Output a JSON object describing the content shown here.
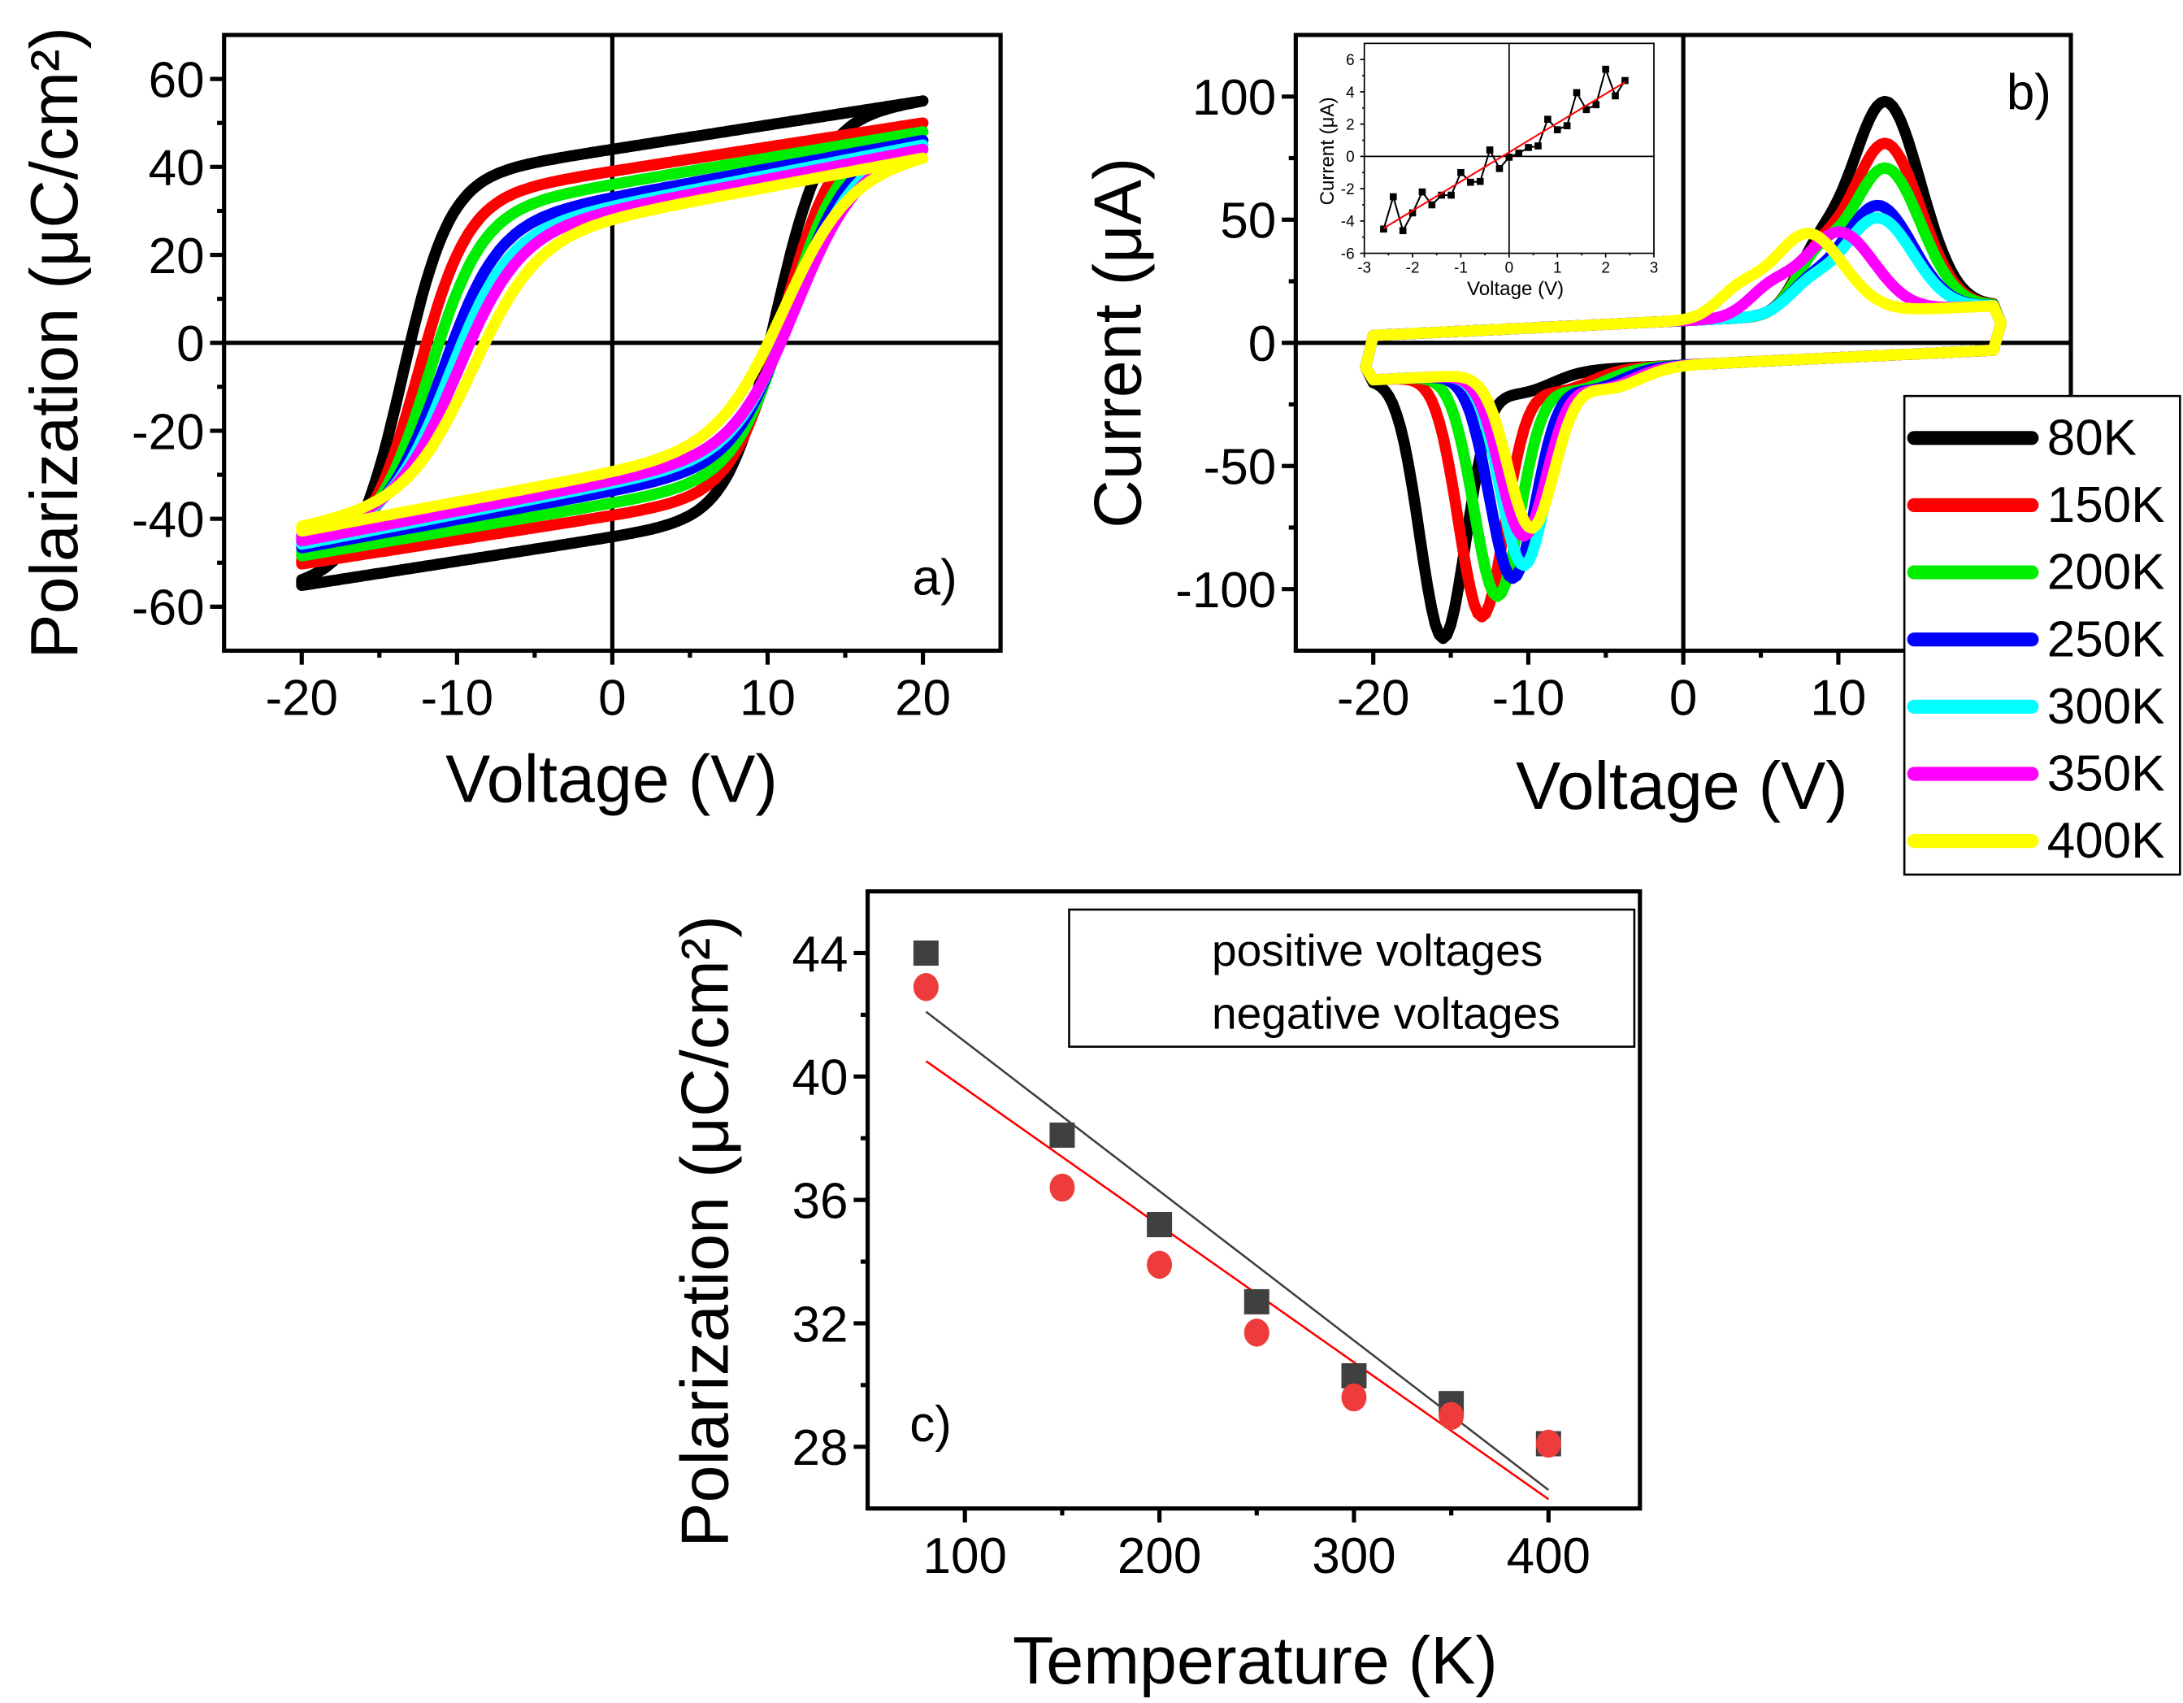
{
  "chart_data": [
    {
      "id": "a",
      "type": "line",
      "panel_label": "a)",
      "xlabel": "Voltage (V)",
      "ylabel": "Polarization (μC/cm²)",
      "xlim": [
        -25,
        25
      ],
      "ylim": [
        -70,
        70
      ],
      "xticks": [
        -20,
        -10,
        0,
        10,
        20
      ],
      "yticks": [
        -60,
        -40,
        -20,
        0,
        20,
        40,
        60
      ],
      "note": "P-E hysteresis loops; per-series key values",
      "series": [
        {
          "name": "80K",
          "color": "#000000",
          "Pmax": 55,
          "Pr": 44,
          "Ec_neg": -13.5,
          "Ec_pos": 10.5
        },
        {
          "name": "150K",
          "color": "#ff0000",
          "Pmax": 50,
          "Pr": 39,
          "Ec_neg": -12.5,
          "Ec_pos": 11.0
        },
        {
          "name": "200K",
          "color": "#00ee00",
          "Pmax": 48,
          "Pr": 36,
          "Ec_neg": -11.8,
          "Ec_pos": 11.3
        },
        {
          "name": "250K",
          "color": "#0000ff",
          "Pmax": 46,
          "Pr": 33,
          "Ec_neg": -11.0,
          "Ec_pos": 11.5
        },
        {
          "name": "300K",
          "color": "#00ffff",
          "Pmax": 45,
          "Pr": 31,
          "Ec_neg": -10.5,
          "Ec_pos": 11.7
        },
        {
          "name": "350K",
          "color": "#ff00ff",
          "Pmax": 44,
          "Pr": 30,
          "Ec_neg": -10.0,
          "Ec_pos": 11.8
        },
        {
          "name": "400K",
          "color": "#ffff00",
          "Pmax": 42,
          "Pr": 28,
          "Ec_neg": -9.0,
          "Ec_pos": 11.0
        }
      ]
    },
    {
      "id": "b",
      "type": "line",
      "panel_label": "b)",
      "xlabel": "Voltage (V)",
      "ylabel": "Current (μA)",
      "xlim": [
        -25,
        25
      ],
      "ylim": [
        -125,
        125
      ],
      "xticks": [
        -20,
        -10,
        0,
        10,
        20
      ],
      "xtick_labels": [
        "-20",
        "-10",
        "0",
        "10",
        ""
      ],
      "yticks": [
        -100,
        -50,
        0,
        50,
        100
      ],
      "legend": {
        "placement": "right",
        "entries": [
          "80K",
          "150K",
          "200K",
          "250K",
          "300K",
          "350K",
          "400K"
        ]
      },
      "note": "I-V switching current loops; per-series peak positions",
      "series": [
        {
          "name": "80K",
          "color": "#000000",
          "pos_peak_V": 13.0,
          "pos_peak_I": 97,
          "neg_peak_V": -15.5,
          "neg_peak_I": -118
        },
        {
          "name": "150K",
          "color": "#ff0000",
          "pos_peak_V": 13.0,
          "pos_peak_I": 80,
          "neg_peak_V": -13.0,
          "neg_peak_I": -110
        },
        {
          "name": "200K",
          "color": "#00ee00",
          "pos_peak_V": 13.0,
          "pos_peak_I": 70,
          "neg_peak_V": -12.0,
          "neg_peak_I": -102
        },
        {
          "name": "250K",
          "color": "#0000ff",
          "pos_peak_V": 12.5,
          "pos_peak_I": 55,
          "neg_peak_V": -11.0,
          "neg_peak_I": -95
        },
        {
          "name": "300K",
          "color": "#00ffff",
          "pos_peak_V": 12.5,
          "pos_peak_I": 50,
          "neg_peak_V": -10.3,
          "neg_peak_I": -90
        },
        {
          "name": "350K",
          "color": "#ff00ff",
          "pos_peak_V": 10.0,
          "pos_peak_I": 45,
          "neg_peak_V": -10.3,
          "neg_peak_I": -78
        },
        {
          "name": "400K",
          "color": "#ffff00",
          "pos_peak_V": 8.0,
          "pos_peak_I": 45,
          "neg_peak_V": -9.8,
          "neg_peak_I": -75
        }
      ],
      "inset": {
        "type": "line",
        "xlabel": "Voltage (V)",
        "ylabel": "Current (μA)",
        "xlim": [
          -3,
          3
        ],
        "ylim": [
          -6,
          7
        ],
        "xticks": [
          -3,
          -2,
          -1,
          0,
          1,
          2,
          3
        ],
        "yticks": [
          -6,
          -4,
          -2,
          0,
          2,
          4,
          6
        ],
        "x": [
          -2.6,
          -2.4,
          -2.2,
          -2.0,
          -1.8,
          -1.6,
          -1.4,
          -1.2,
          -1.0,
          -0.8,
          -0.6,
          -0.4,
          -0.2,
          0.0,
          0.2,
          0.4,
          0.6,
          0.8,
          1.0,
          1.2,
          1.4,
          1.6,
          1.8,
          2.0,
          2.2,
          2.4
        ],
        "y": [
          -4.5,
          -2.5,
          -4.6,
          -3.5,
          -2.2,
          -3.0,
          -2.4,
          -2.4,
          -1.0,
          -1.6,
          -1.55,
          0.4,
          -0.75,
          -0.05,
          0.2,
          0.55,
          0.65,
          2.3,
          1.65,
          1.9,
          3.95,
          2.9,
          3.2,
          5.4,
          3.75,
          4.7
        ],
        "fit": {
          "x": [
            -2.6,
            2.4
          ],
          "y": [
            -4.45,
            4.6
          ],
          "color": "#ff0000"
        }
      }
    },
    {
      "id": "c",
      "type": "scatter",
      "panel_label": "c)",
      "xlabel": "Temperature (K)",
      "ylabel": "Polarization (μC/cm²)",
      "xlim": [
        50,
        447
      ],
      "ylim": [
        26,
        46
      ],
      "xticks": [
        100,
        200,
        300,
        400
      ],
      "yticks": [
        28,
        32,
        36,
        40,
        44
      ],
      "legend": {
        "placement": "top-right"
      },
      "x": [
        80,
        150,
        200,
        250,
        300,
        350,
        400
      ],
      "series": [
        {
          "name": "positive voltages",
          "marker": "square",
          "color": "#404040",
          "values": [
            44.0,
            38.1,
            35.2,
            32.7,
            30.3,
            29.4,
            28.1
          ],
          "fit": {
            "x": [
              80,
              400
            ],
            "y": [
              42.1,
              26.6
            ],
            "color": "#404040"
          }
        },
        {
          "name": "negative voltages",
          "marker": "circle",
          "color": "#ee3b3b",
          "values": [
            42.9,
            36.4,
            33.9,
            31.7,
            29.6,
            29.0,
            28.1
          ],
          "fit": {
            "x": [
              80,
              400
            ],
            "y": [
              40.5,
              26.3
            ],
            "color": "#ff0000"
          }
        }
      ]
    }
  ]
}
